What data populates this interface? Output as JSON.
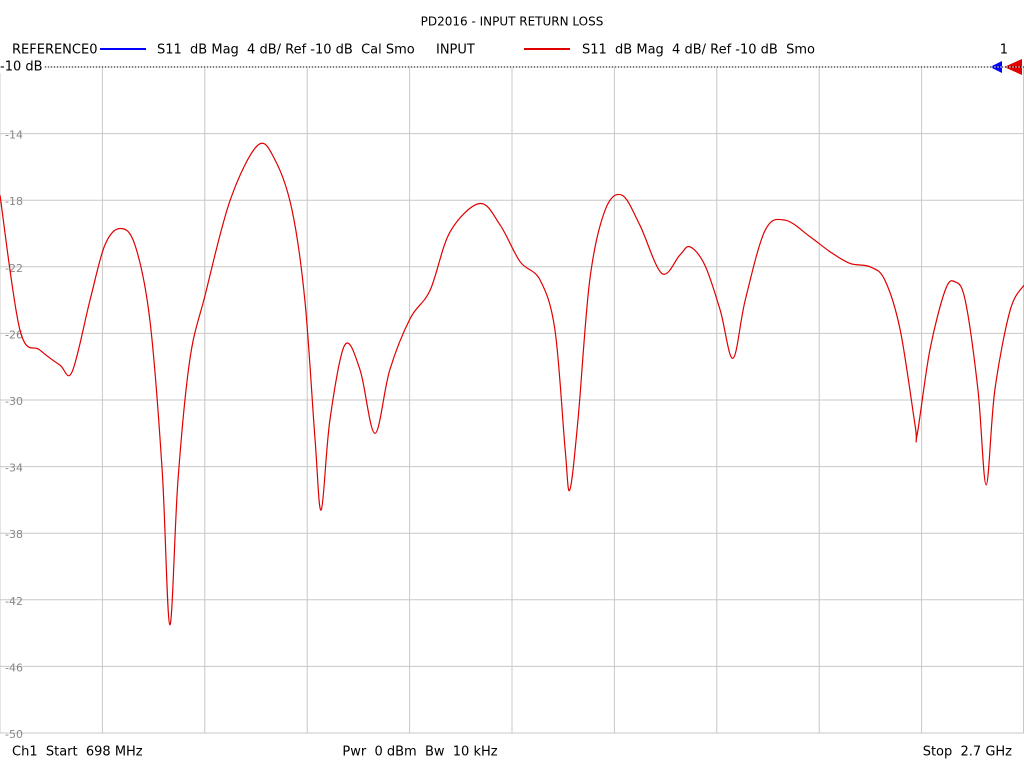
{
  "chart_data": {
    "type": "line",
    "title": "PD2016 - INPUT RETURN LOSS",
    "reference_trace": {
      "name": "REFERENCE0",
      "color": "#0000ff",
      "label": "S11  dB Mag  4 dB/ Ref -10 dB  Cal Smo"
    },
    "series": [
      {
        "name": "INPUT",
        "color": "#e00000",
        "label": "S11  dB Mag  4 dB/ Ref -10 dB  Smo",
        "x": [
          698,
          737,
          776,
          815,
          839,
          874,
          903,
          933,
          962,
          991,
          1015,
          1030,
          1046,
          1069,
          1099,
          1148,
          1202,
          1236,
          1269,
          1294,
          1314,
          1326,
          1343,
          1372,
          1402,
          1431,
          1460,
          1500,
          1539,
          1578,
          1636,
          1676,
          1715,
          1754,
          1783,
          1803,
          1812,
          1828,
          1851,
          1881,
          1914,
          1949,
          1992,
          2027,
          2047,
          2076,
          2106,
          2131,
          2155,
          2194,
          2233,
          2282,
          2321,
          2360,
          2399,
          2428,
          2458,
          2487,
          2491,
          2516,
          2546,
          2565,
          2585,
          2610,
          2626,
          2643,
          2673,
          2700
        ],
        "values": [
          -17.7,
          -25.8,
          -27.0,
          -27.9,
          -28.3,
          -24.0,
          -20.7,
          -19.7,
          -20.7,
          -25.2,
          -34.2,
          -43.5,
          -34.8,
          -27.6,
          -23.7,
          -18.0,
          -14.7,
          -15.6,
          -18.6,
          -24.0,
          -32.4,
          -36.6,
          -31.2,
          -26.7,
          -28.2,
          -32.0,
          -28.2,
          -25.1,
          -23.4,
          -19.9,
          -18.2,
          -19.5,
          -21.7,
          -22.8,
          -25.8,
          -33.0,
          -35.4,
          -31.2,
          -22.8,
          -18.6,
          -17.7,
          -19.5,
          -22.4,
          -21.3,
          -20.8,
          -21.9,
          -24.6,
          -27.5,
          -24.0,
          -19.8,
          -19.2,
          -20.2,
          -21.1,
          -21.8,
          -22.0,
          -22.8,
          -25.8,
          -31.5,
          -32.1,
          -27.0,
          -23.4,
          -22.9,
          -24.0,
          -29.4,
          -35.1,
          -29.4,
          -24.6,
          -23.1
        ]
      }
    ],
    "marker_label": "1",
    "reference_level": {
      "value": -10,
      "label": "-10 dB"
    },
    "xlim": [
      698,
      2700
    ],
    "xticks": [
      698,
      898.2,
      1098.4,
      1298.6,
      1498.8,
      1699,
      1899.2,
      2099.4,
      2299.6,
      2499.8,
      2700
    ],
    "ylim": [
      -50,
      -10
    ],
    "yticks": [
      -10,
      -14,
      -18,
      -22,
      -26,
      -30,
      -34,
      -38,
      -42,
      -46,
      -50
    ],
    "grid": true,
    "footer": {
      "left": "Ch1  Start  698 MHz",
      "center": "Pwr  0 dBm  Bw  10 kHz",
      "right": "Stop  2.7 GHz"
    }
  }
}
